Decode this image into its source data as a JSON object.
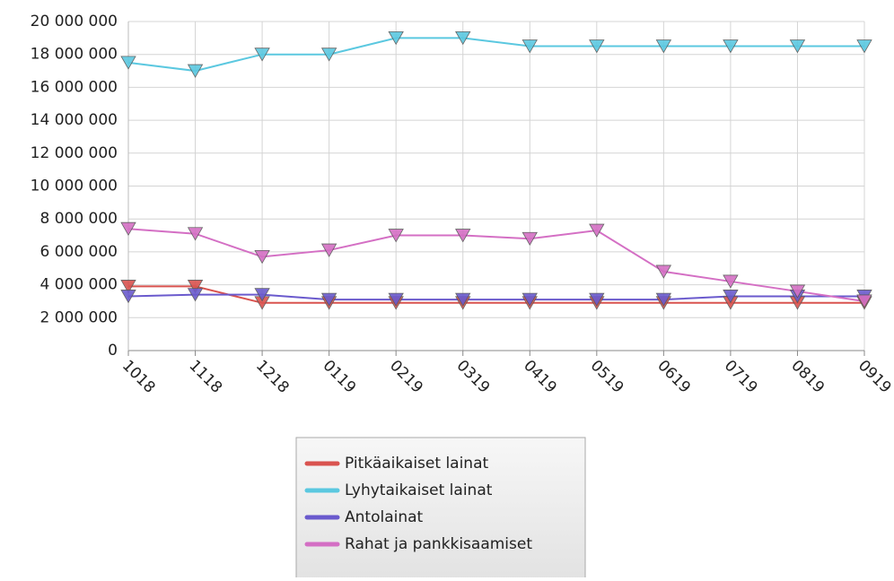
{
  "chart_data": {
    "type": "line",
    "categories": [
      "1018",
      "1118",
      "1218",
      "0119",
      "0219",
      "0319",
      "0419",
      "0519",
      "0619",
      "0719",
      "0819",
      "0919"
    ],
    "series": [
      {
        "name": "Pitkäaikaiset lainat",
        "color": "#d9534f",
        "values": [
          3900000,
          3900000,
          2900000,
          2900000,
          2900000,
          2900000,
          2900000,
          2900000,
          2900000,
          2900000,
          2900000,
          2900000
        ]
      },
      {
        "name": "Lyhytaikaiset lainat",
        "color": "#5bc8e0",
        "values": [
          17500000,
          17000000,
          18000000,
          18000000,
          19000000,
          19000000,
          18500000,
          18500000,
          18500000,
          18500000,
          18500000,
          18500000
        ]
      },
      {
        "name": "Antolainat",
        "color": "#6a5acd",
        "values": [
          3300000,
          3400000,
          3400000,
          3100000,
          3100000,
          3100000,
          3100000,
          3100000,
          3100000,
          3300000,
          3300000,
          3300000
        ]
      },
      {
        "name": "Rahat ja pankkisaamiset",
        "color": "#d46fc4",
        "values": [
          7400000,
          7100000,
          5700000,
          6100000,
          7000000,
          7000000,
          6800000,
          7300000,
          4800000,
          4200000,
          3600000,
          3000000
        ]
      }
    ],
    "ylim": [
      0,
      20000000
    ],
    "yticks": [
      0,
      {
        "value": 2000000,
        "label": "2 000 000"
      },
      {
        "value": 4000000,
        "label": "4 000 000"
      },
      {
        "value": 6000000,
        "label": "6 000 000"
      },
      {
        "value": 8000000,
        "label": "8 000 000"
      },
      {
        "value": 10000000,
        "label": "10 000 000"
      },
      {
        "value": 12000000,
        "label": "12 000 000"
      },
      {
        "value": 14000000,
        "label": "14 000 000"
      },
      {
        "value": 16000000,
        "label": "16 000 000"
      },
      {
        "value": 18000000,
        "label": "18 000 000"
      },
      {
        "value": 20000000,
        "label": "20 000 000"
      }
    ],
    "grid": true,
    "legend": "bottom"
  }
}
